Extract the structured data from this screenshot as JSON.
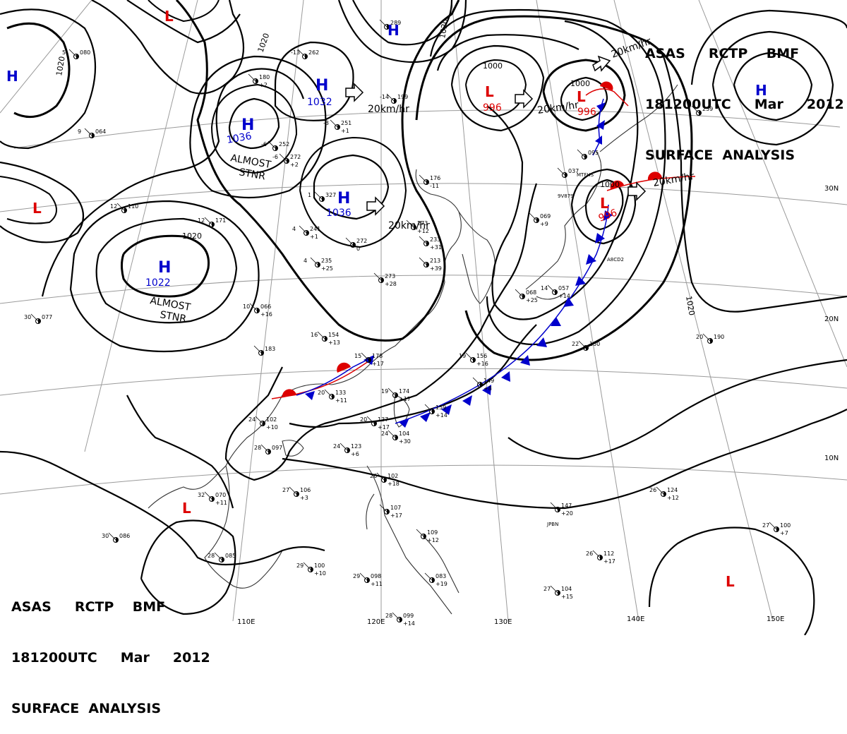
{
  "header": {
    "line1": "ASAS     RCTP    BMF",
    "line2": "181200UTC     Mar     2012",
    "line3": "SURFACE  ANALYSIS"
  },
  "colors": {
    "high": "#0000cc",
    "low": "#dd0000",
    "cold_front": "#0000cc",
    "warm_front": "#dd0000",
    "isobar": "#000000",
    "grid": "#9a9a9a",
    "coast": "#333333"
  },
  "grid_labels": {
    "lon": [
      "110E",
      "120E",
      "130E",
      "140E",
      "150E"
    ],
    "lat": [
      "30N",
      "20N",
      "10N"
    ]
  },
  "isobar_labels": [
    "1020",
    "1020",
    "1020",
    "1020",
    "1000",
    "1000",
    "1000",
    "1020"
  ],
  "pressure_centers": [
    {
      "type": "H",
      "value": "1036"
    },
    {
      "type": "H",
      "value": "1032"
    },
    {
      "type": "H",
      "value": "1036"
    },
    {
      "type": "H",
      "value": "1022"
    },
    {
      "type": "H",
      "value": ""
    },
    {
      "type": "H",
      "value": ""
    },
    {
      "type": "H",
      "value": ""
    },
    {
      "type": "L",
      "value": "996"
    },
    {
      "type": "L",
      "value": "996"
    },
    {
      "type": "L",
      "value": "996"
    },
    {
      "type": "L",
      "value": ""
    },
    {
      "type": "L",
      "value": ""
    },
    {
      "type": "L",
      "value": ""
    },
    {
      "type": "L",
      "value": ""
    }
  ],
  "annotations": [
    "ALMOST",
    "STNR",
    "ALMOST",
    "STNR"
  ],
  "motion_labels": [
    "20km/hr",
    "20km/hr",
    "20km/hr",
    "20km/hr",
    "20km/hr"
  ],
  "stations": [
    {
      "t": "",
      "p": "289",
      "tend": ""
    },
    {
      "t": "-13",
      "p": "262",
      "tend": ""
    },
    {
      "t": "-14",
      "p": "199",
      "tend": ""
    },
    {
      "t": "-3",
      "p": "251",
      "tend": "+1"
    },
    {
      "t": "-6",
      "p": "272",
      "tend": "+2"
    },
    {
      "t": "-6",
      "p": "252",
      "tend": ""
    },
    {
      "t": "",
      "p": "180",
      "tend": "+2"
    },
    {
      "t": "1",
      "p": "327",
      "tend": ""
    },
    {
      "t": "4",
      "p": "241",
      "tend": "+1"
    },
    {
      "t": "",
      "p": "272",
      "tend": "0"
    },
    {
      "t": "",
      "p": "273",
      "tend": "+12"
    },
    {
      "t": "",
      "p": "176",
      "tend": "-11"
    },
    {
      "t": "4",
      "p": "235",
      "tend": "+25"
    },
    {
      "t": "",
      "p": "233",
      "tend": "+31"
    },
    {
      "t": "",
      "p": "213",
      "tend": "+39"
    },
    {
      "t": "",
      "p": "273",
      "tend": "+28"
    },
    {
      "t": "12",
      "p": "171",
      "tend": ""
    },
    {
      "t": "12",
      "p": "110",
      "tend": ""
    },
    {
      "t": "9",
      "p": "064",
      "tend": ""
    },
    {
      "t": "5",
      "p": "080",
      "tend": ""
    },
    {
      "t": "10",
      "p": "066",
      "tend": "+16"
    },
    {
      "t": "",
      "p": "183",
      "tend": ""
    },
    {
      "t": "16",
      "p": "154",
      "tend": "+13"
    },
    {
      "t": "15",
      "p": "178",
      "tend": "+17"
    },
    {
      "t": "20",
      "p": "133",
      "tend": "+11"
    },
    {
      "t": "19",
      "p": "156",
      "tend": "+16"
    },
    {
      "t": "",
      "p": "149",
      "tend": "+8"
    },
    {
      "t": "19",
      "p": "174",
      "tend": "+17"
    },
    {
      "t": "",
      "p": "159",
      "tend": "+14"
    },
    {
      "t": "20",
      "p": "137",
      "tend": "+17"
    },
    {
      "t": "24",
      "p": "102",
      "tend": "+10"
    },
    {
      "t": "24",
      "p": "104",
      "tend": "+30"
    },
    {
      "t": "24",
      "p": "123",
      "tend": "+6"
    },
    {
      "t": "28",
      "p": "097",
      "tend": ""
    },
    {
      "t": "26",
      "p": "102",
      "tend": "+18"
    },
    {
      "t": "",
      "p": "107",
      "tend": "+17"
    },
    {
      "t": "27",
      "p": "106",
      "tend": "+3"
    },
    {
      "t": "32",
      "p": "070",
      "tend": "+11"
    },
    {
      "t": "30",
      "p": "086",
      "tend": ""
    },
    {
      "t": "28",
      "p": "085",
      "tend": ""
    },
    {
      "t": "",
      "p": "109",
      "tend": "+12"
    },
    {
      "t": "29",
      "p": "100",
      "tend": "+10"
    },
    {
      "t": "29",
      "p": "098",
      "tend": "+11"
    },
    {
      "t": "",
      "p": "083",
      "tend": "+19"
    },
    {
      "t": "28",
      "p": "099",
      "tend": "+14"
    },
    {
      "t": "",
      "p": "147",
      "tend": "+20"
    },
    {
      "t": "26",
      "p": "124",
      "tend": "+12"
    },
    {
      "t": "26",
      "p": "112",
      "tend": "+17"
    },
    {
      "t": "27",
      "p": "104",
      "tend": "+15"
    },
    {
      "t": "27",
      "p": "100",
      "tend": "+7"
    },
    {
      "t": "20",
      "p": "190",
      "tend": ""
    },
    {
      "t": "22",
      "p": "150",
      "tend": ""
    },
    {
      "t": "14",
      "p": "057",
      "tend": "+14"
    },
    {
      "t": "",
      "p": "068",
      "tend": "+25"
    },
    {
      "t": "",
      "p": "069",
      "tend": "+9"
    },
    {
      "t": "",
      "p": "037",
      "tend": ""
    },
    {
      "t": "",
      "p": "095",
      "tend": ""
    },
    {
      "t": "",
      "p": "239",
      "tend": ""
    },
    {
      "t": "30",
      "p": "077",
      "tend": ""
    }
  ],
  "station_codes": [
    "MTFHS",
    "9V879",
    "A8CD2",
    "JPBN"
  ]
}
